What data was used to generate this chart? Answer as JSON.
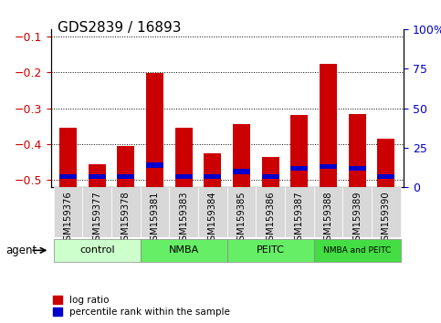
{
  "title": "GDS2839 / 16893",
  "samples": [
    "GSM159376",
    "GSM159377",
    "GSM159378",
    "GSM159381",
    "GSM159383",
    "GSM159384",
    "GSM159385",
    "GSM159386",
    "GSM159387",
    "GSM159388",
    "GSM159389",
    "GSM159390"
  ],
  "log_ratio": [
    -0.355,
    -0.455,
    -0.405,
    -0.202,
    -0.355,
    -0.425,
    -0.345,
    -0.435,
    -0.32,
    -0.178,
    -0.315,
    -0.385
  ],
  "percentile_rank": [
    7,
    7,
    7,
    14,
    7,
    7,
    10,
    7,
    12,
    13,
    12,
    7
  ],
  "ylim_left": [
    -0.52,
    -0.08
  ],
  "ylim_right": [
    0,
    100
  ],
  "yticks_left": [
    -0.5,
    -0.4,
    -0.3,
    -0.2,
    -0.1
  ],
  "yticks_right": [
    0,
    25,
    50,
    75,
    100
  ],
  "ytick_labels_right": [
    "0",
    "25",
    "50",
    "75",
    "100%"
  ],
  "bar_color": "#cc0000",
  "percentile_color": "#0000cc",
  "bar_width": 0.6,
  "groups": [
    {
      "label": "control",
      "start": 0,
      "end": 3,
      "color": "#ccffcc"
    },
    {
      "label": "NMBA",
      "start": 3,
      "end": 6,
      "color": "#66ee66"
    },
    {
      "label": "PEITC",
      "start": 6,
      "end": 9,
      "color": "#66ee66"
    },
    {
      "label": "NMBA and PEITC",
      "start": 9,
      "end": 12,
      "color": "#44dd44"
    }
  ],
  "legend_red_label": "log ratio",
  "legend_blue_label": "percentile rank within the sample",
  "xlabel_agent": "agent",
  "background_color": "#ffffff",
  "plot_bg": "#ffffff",
  "tick_label_color_left": "#cc0000",
  "tick_label_color_right": "#0000cc",
  "title_fontsize": 11,
  "axis_fontsize": 8,
  "legend_fontsize": 7.5
}
